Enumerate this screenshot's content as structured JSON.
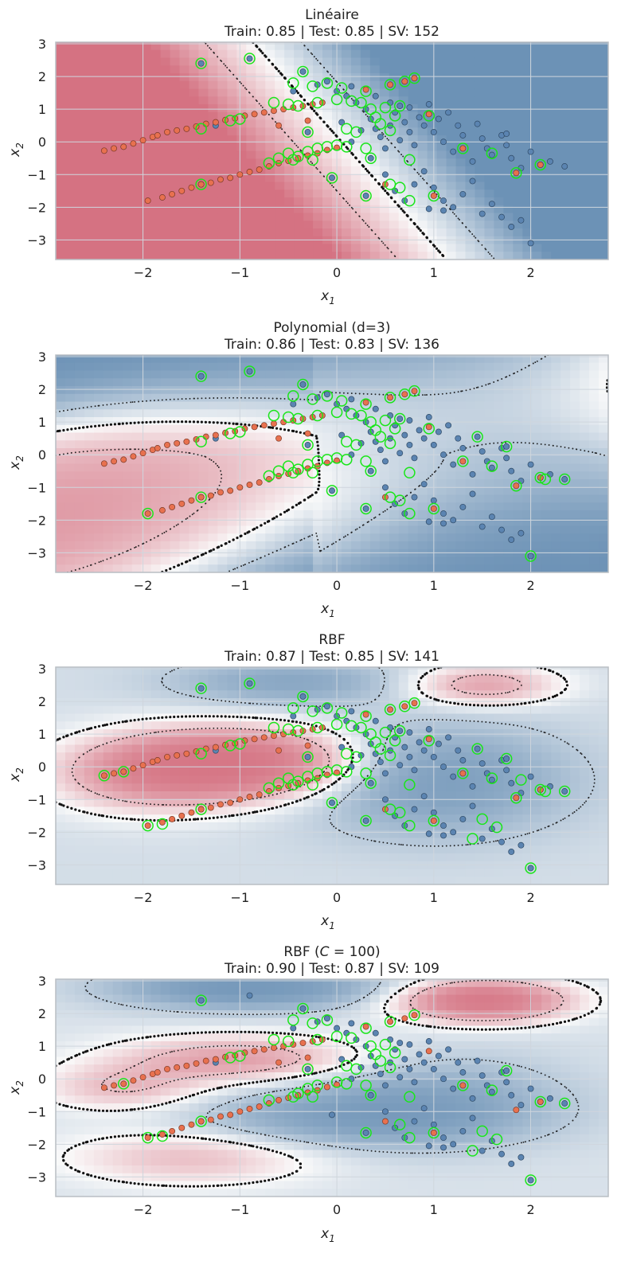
{
  "colors": {
    "class_neg": "#e8714f",
    "class_pos": "#5b84b1",
    "support_vector_ring": "#19e619",
    "decision_boundary": "#111111",
    "margin_line": "#111111",
    "heat_red": "#c8455a",
    "heat_blue": "#3d6f9f",
    "grid": "#cfd6dd",
    "frame": "#b9bec4"
  },
  "chart_data": [
    {
      "type": "scatter",
      "title_line1": "Linéaire",
      "title_line2": "Train: 0.85 | Test: 0.85 | SV: 152",
      "xlabel": "x",
      "xlabel_sub": "1",
      "ylabel": "x",
      "ylabel_sub": "2",
      "xlim": [
        -2.9,
        2.8
      ],
      "ylim": [
        -3.6,
        3.05
      ],
      "xticks": [
        -2,
        -1,
        0,
        1,
        2
      ],
      "yticks": [
        3,
        2,
        1,
        0,
        -1,
        -2,
        -3
      ],
      "kernel": "linear",
      "field": {
        "w1": 1.0,
        "w2": 0.3,
        "b": -0.05,
        "scale": 0.9
      }
    },
    {
      "type": "scatter",
      "title_line1": "Polynomial (d=3)",
      "title_line2": "Train: 0.86 | Test: 0.83 | SV: 136",
      "xlabel": "x",
      "xlabel_sub": "1",
      "ylabel": "x",
      "ylabel_sub": "2",
      "xlim": [
        -2.9,
        2.8
      ],
      "ylim": [
        -3.6,
        3.05
      ],
      "xticks": [
        -2,
        -1,
        0,
        1,
        2
      ],
      "yticks": [
        3,
        2,
        1,
        0,
        -1,
        -2,
        -3
      ],
      "kernel": "poly",
      "field": {
        "scale": 0.45
      }
    },
    {
      "type": "scatter",
      "title_line1": "RBF",
      "title_line2": "Train: 0.87 | Test: 0.85 | SV: 141",
      "xlabel": "x",
      "xlabel_sub": "1",
      "ylabel": "x",
      "ylabel_sub": "2",
      "xlim": [
        -2.9,
        2.8
      ],
      "ylim": [
        -3.6,
        3.05
      ],
      "xticks": [
        -2,
        -1,
        0,
        1,
        2
      ],
      "yticks": [
        3,
        2,
        1,
        0,
        -1,
        -2,
        -3
      ],
      "kernel": "rbf",
      "field": {
        "bias": -0.35,
        "bumps": [
          {
            "cx": -1.0,
            "cy": 0.1,
            "sx": 0.9,
            "sy": 0.75,
            "a": 2.6
          },
          {
            "cx": -2.0,
            "cy": -0.3,
            "sx": 0.7,
            "sy": 0.8,
            "a": 1.0
          },
          {
            "cx": 1.5,
            "cy": 2.5,
            "sx": 0.55,
            "sy": 0.45,
            "a": 1.3
          },
          {
            "cx": 1.0,
            "cy": -0.4,
            "sx": 0.9,
            "sy": 1.1,
            "a": -1.4
          },
          {
            "cx": -0.5,
            "cy": 2.6,
            "sx": 0.8,
            "sy": 0.5,
            "a": -1.0
          }
        ]
      }
    },
    {
      "type": "scatter",
      "title_line1": "RBF (",
      "title_italic": "C",
      "title_line1_tail": " = 100)",
      "title_line2": "Train: 0.90 | Test: 0.87 | SV: 109",
      "xlabel": "x",
      "xlabel_sub": "1",
      "ylabel": "x",
      "ylabel_sub": "2",
      "xlim": [
        -2.9,
        2.8
      ],
      "ylim": [
        -3.6,
        3.05
      ],
      "xticks": [
        -2,
        -1,
        0,
        1,
        2
      ],
      "yticks": [
        3,
        2,
        1,
        0,
        -1,
        -2,
        -3
      ],
      "kernel": "rbf",
      "field": {
        "bias": -0.3,
        "bumps": [
          {
            "cx": 1.5,
            "cy": 2.4,
            "sx": 0.6,
            "sy": 0.45,
            "a": 2.4
          },
          {
            "cx": -1.0,
            "cy": 0.6,
            "sx": 0.9,
            "sy": 0.5,
            "a": 1.3
          },
          {
            "cx": -2.2,
            "cy": -0.3,
            "sx": 0.6,
            "sy": 0.5,
            "a": 0.9
          },
          {
            "cx": -1.5,
            "cy": -2.4,
            "sx": 0.9,
            "sy": 0.6,
            "a": 0.9
          },
          {
            "cx": -0.9,
            "cy": 2.8,
            "sx": 0.9,
            "sy": 0.45,
            "a": -1.8
          },
          {
            "cx": 0.1,
            "cy": -1.2,
            "sx": 1.1,
            "sy": 0.6,
            "a": -1.1
          },
          {
            "cx": 1.0,
            "cy": -0.6,
            "sx": 0.9,
            "sy": 0.9,
            "a": -0.9
          }
        ]
      }
    }
  ],
  "points_class_neg": [
    [
      -2.4,
      -0.27
    ],
    [
      -2.3,
      -0.2
    ],
    [
      -2.2,
      -0.15
    ],
    [
      -2.1,
      -0.05
    ],
    [
      -2.0,
      0.05
    ],
    [
      -1.9,
      0.15
    ],
    [
      -1.85,
      0.2
    ],
    [
      -1.75,
      0.3
    ],
    [
      -1.65,
      0.35
    ],
    [
      -1.55,
      0.4
    ],
    [
      -1.45,
      0.47
    ],
    [
      -1.35,
      0.55
    ],
    [
      -1.25,
      0.6
    ],
    [
      -1.15,
      0.67
    ],
    [
      -1.05,
      0.72
    ],
    [
      -0.95,
      0.8
    ],
    [
      -0.85,
      0.85
    ],
    [
      -0.75,
      0.9
    ],
    [
      -0.65,
      0.95
    ],
    [
      -0.55,
      1.0
    ],
    [
      -0.45,
      1.05
    ],
    [
      -0.35,
      1.1
    ],
    [
      -0.25,
      1.15
    ],
    [
      -0.15,
      1.2
    ],
    [
      -1.95,
      -1.8
    ],
    [
      -1.8,
      -1.7
    ],
    [
      -1.7,
      -1.6
    ],
    [
      -1.6,
      -1.5
    ],
    [
      -1.5,
      -1.4
    ],
    [
      -1.4,
      -1.3
    ],
    [
      -1.3,
      -1.25
    ],
    [
      -1.2,
      -1.15
    ],
    [
      -1.1,
      -1.1
    ],
    [
      -1.0,
      -1.0
    ],
    [
      -0.9,
      -0.92
    ],
    [
      -0.8,
      -0.85
    ],
    [
      -0.7,
      -0.75
    ],
    [
      -0.6,
      -0.65
    ],
    [
      -0.5,
      -0.58
    ],
    [
      -0.4,
      -0.5
    ],
    [
      -0.3,
      -0.42
    ],
    [
      -0.2,
      -0.35
    ],
    [
      -0.1,
      -0.25
    ],
    [
      0.0,
      -0.18
    ],
    [
      0.55,
      1.75
    ],
    [
      0.7,
      1.85
    ],
    [
      0.8,
      1.95
    ],
    [
      0.3,
      1.6
    ],
    [
      1.0,
      -1.65
    ],
    [
      1.3,
      -0.2
    ],
    [
      1.85,
      -0.95
    ],
    [
      2.1,
      -0.7
    ],
    [
      -1.4,
      -1.3
    ],
    [
      0.5,
      -1.3
    ],
    [
      0.95,
      0.85
    ],
    [
      -0.3,
      0.65
    ],
    [
      -0.6,
      0.5
    ]
  ],
  "points_class_pos": [
    [
      -1.4,
      2.4
    ],
    [
      -0.9,
      2.55
    ],
    [
      -0.35,
      2.15
    ],
    [
      -0.2,
      1.75
    ],
    [
      -0.1,
      1.85
    ],
    [
      0.0,
      1.55
    ],
    [
      0.1,
      1.4
    ],
    [
      0.15,
      1.7
    ],
    [
      0.2,
      1.2
    ],
    [
      0.3,
      1.0
    ],
    [
      0.35,
      0.7
    ],
    [
      0.4,
      0.4
    ],
    [
      0.45,
      0.15
    ],
    [
      0.5,
      -0.2
    ],
    [
      0.55,
      0.5
    ],
    [
      0.6,
      0.9
    ],
    [
      0.65,
      1.1
    ],
    [
      0.7,
      0.6
    ],
    [
      0.75,
      0.3
    ],
    [
      0.8,
      -0.1
    ],
    [
      0.85,
      0.75
    ],
    [
      0.9,
      0.5
    ],
    [
      1.0,
      0.3
    ],
    [
      1.05,
      0.7
    ],
    [
      1.1,
      0.0
    ],
    [
      1.2,
      -0.3
    ],
    [
      1.25,
      0.5
    ],
    [
      1.3,
      0.2
    ],
    [
      1.4,
      -0.6
    ],
    [
      1.5,
      0.1
    ],
    [
      1.55,
      -0.2
    ],
    [
      1.6,
      -0.4
    ],
    [
      1.7,
      0.2
    ],
    [
      1.75,
      -0.1
    ],
    [
      1.8,
      -0.5
    ],
    [
      1.9,
      -0.8
    ],
    [
      2.0,
      -0.3
    ],
    [
      2.1,
      -0.7
    ],
    [
      2.2,
      -0.6
    ],
    [
      2.35,
      -0.75
    ],
    [
      0.5,
      -1.0
    ],
    [
      0.6,
      -1.5
    ],
    [
      0.7,
      -1.8
    ],
    [
      0.8,
      -1.3
    ],
    [
      0.9,
      -0.9
    ],
    [
      1.0,
      -1.4
    ],
    [
      1.1,
      -1.8
    ],
    [
      1.2,
      -2.0
    ],
    [
      1.3,
      -1.6
    ],
    [
      1.4,
      -1.2
    ],
    [
      1.5,
      -2.2
    ],
    [
      1.6,
      -1.9
    ],
    [
      1.7,
      -2.3
    ],
    [
      1.8,
      -2.6
    ],
    [
      1.9,
      -2.4
    ],
    [
      2.0,
      -3.1
    ],
    [
      1.1,
      -2.1
    ],
    [
      0.95,
      -2.05
    ],
    [
      0.3,
      -1.65
    ],
    [
      -0.05,
      -1.1
    ],
    [
      0.25,
      0.35
    ],
    [
      0.35,
      -0.5
    ],
    [
      0.65,
      0.05
    ],
    [
      0.15,
      0.0
    ],
    [
      1.45,
      0.55
    ],
    [
      1.75,
      0.25
    ],
    [
      1.15,
      0.9
    ],
    [
      0.95,
      1.15
    ],
    [
      0.75,
      1.05
    ],
    [
      0.55,
      1.2
    ],
    [
      0.4,
      1.4
    ],
    [
      -0.3,
      0.3
    ],
    [
      0.05,
      0.6
    ],
    [
      -0.45,
      1.55
    ],
    [
      -1.25,
      0.5
    ]
  ],
  "sv_points": [
    [
      -1.4,
      2.4
    ],
    [
      -0.9,
      2.55
    ],
    [
      -0.35,
      2.15
    ],
    [
      -0.45,
      1.8
    ],
    [
      -0.25,
      1.7
    ],
    [
      0.05,
      1.65
    ],
    [
      -0.1,
      1.8
    ],
    [
      0.3,
      1.55
    ],
    [
      0.55,
      1.75
    ],
    [
      0.7,
      1.85
    ],
    [
      0.8,
      1.95
    ],
    [
      -0.65,
      1.2
    ],
    [
      -0.5,
      1.15
    ],
    [
      -0.4,
      1.1
    ],
    [
      -0.2,
      1.2
    ],
    [
      0.0,
      1.3
    ],
    [
      0.15,
      1.25
    ],
    [
      0.25,
      1.2
    ],
    [
      0.35,
      1.0
    ],
    [
      -1.1,
      0.65
    ],
    [
      -1.0,
      0.7
    ],
    [
      -1.4,
      0.4
    ],
    [
      -0.3,
      0.3
    ],
    [
      0.1,
      0.4
    ],
    [
      0.2,
      0.3
    ],
    [
      -0.5,
      -0.35
    ],
    [
      -0.4,
      -0.45
    ],
    [
      -0.3,
      -0.3
    ],
    [
      -0.2,
      -0.2
    ],
    [
      -0.1,
      -0.15
    ],
    [
      0.0,
      -0.1
    ],
    [
      0.1,
      -0.15
    ],
    [
      0.3,
      -0.2
    ],
    [
      -0.6,
      -0.5
    ],
    [
      -0.45,
      -0.55
    ],
    [
      -0.7,
      -0.65
    ],
    [
      -0.25,
      -0.55
    ],
    [
      -0.05,
      -1.1
    ],
    [
      0.35,
      -0.5
    ],
    [
      -1.4,
      -1.3
    ],
    [
      0.3,
      -1.65
    ],
    [
      0.55,
      -1.3
    ],
    [
      0.65,
      -1.4
    ],
    [
      0.75,
      -1.8
    ],
    [
      0.75,
      -0.55
    ],
    [
      0.95,
      0.8
    ],
    [
      1.0,
      -1.65
    ],
    [
      1.3,
      -0.2
    ],
    [
      1.6,
      -0.35
    ],
    [
      1.85,
      -0.95
    ],
    [
      2.1,
      -0.7
    ],
    [
      0.5,
      1.05
    ],
    [
      0.6,
      0.8
    ],
    [
      0.65,
      1.1
    ],
    [
      0.45,
      0.55
    ],
    [
      0.55,
      0.35
    ],
    [
      0.4,
      0.75
    ]
  ],
  "sv_extra_poly": [
    [
      -1.95,
      -1.8
    ],
    [
      1.45,
      0.55
    ],
    [
      1.75,
      0.25
    ],
    [
      2.35,
      -0.75
    ],
    [
      2.0,
      -3.1
    ],
    [
      2.15,
      -0.75
    ]
  ],
  "sv_extra_rbf": [
    [
      -2.4,
      -0.27
    ],
    [
      -2.2,
      -0.15
    ],
    [
      -1.8,
      -1.75
    ],
    [
      -1.95,
      -1.8
    ],
    [
      1.45,
      0.55
    ],
    [
      1.75,
      0.25
    ],
    [
      2.35,
      -0.75
    ],
    [
      2.0,
      -3.1
    ],
    [
      2.15,
      -0.75
    ],
    [
      1.5,
      -1.6
    ],
    [
      1.65,
      -1.85
    ],
    [
      1.4,
      -2.2
    ],
    [
      1.9,
      -0.4
    ]
  ]
}
